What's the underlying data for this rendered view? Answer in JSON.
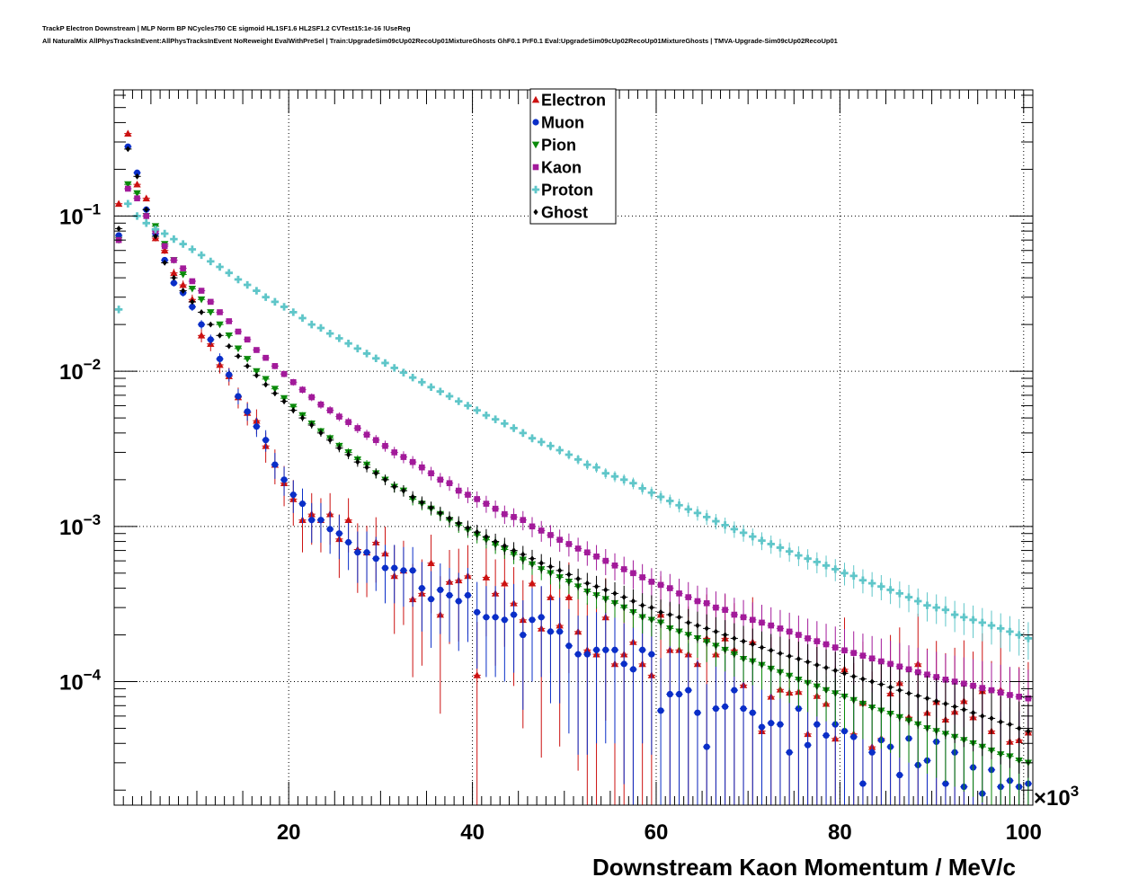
{
  "header": {
    "title_line1": "TrackP Electron Downstream | MLP Norm BP NCycles750 CE sigmoid HL1SF1.6 HL2SF1.2 CVTest15:1e-16 !UseReg",
    "title_line2": "All NaturalMix AllPhysTracksInEvent:AllPhysTracksInEvent NoReweight EvalWithPreSel | Train:UpgradeSim09cUp02RecoUp01MixtureGhosts GhF0.1 PrF0.1 Eval:UpgradeSim09cUp02RecoUp01MixtureGhosts | TMVA-Upgrade-Sim09cUp02RecoUp01"
  },
  "chart_data": {
    "type": "scatter",
    "xlabel": "Downstream Kaon Momentum / MeV/c",
    "x_multiplier_label": "×10",
    "x_multiplier_exp": "3",
    "x_unit_scale": 1000,
    "xlim": [
      1,
      101
    ],
    "ylim": [
      1.6e-05,
      0.65
    ],
    "y_scale": "log",
    "grid": true,
    "legend_position": "top-center",
    "x_ticks": [
      20,
      40,
      60,
      80,
      100
    ],
    "y_ticks": [
      {
        "value": 0.1,
        "base": "10",
        "exp": "−1"
      },
      {
        "value": 0.01,
        "base": "10",
        "exp": "−2"
      },
      {
        "value": 0.001,
        "base": "10",
        "exp": "−3"
      },
      {
        "value": 0.0001,
        "base": "10",
        "exp": "−4"
      }
    ],
    "x": [
      1.5,
      2.5,
      3.5,
      4.5,
      5.5,
      6.5,
      7.5,
      8.5,
      9.5,
      10.5,
      11.5,
      12.5,
      13.5,
      14.5,
      15.5,
      16.5,
      17.5,
      18.5,
      19.5,
      20.5,
      21.5,
      22.5,
      23.5,
      24.5,
      25.5,
      26.5,
      27.5,
      28.5,
      29.5,
      30.5,
      31.5,
      32.5,
      33.5,
      34.5,
      35.5,
      36.5,
      37.5,
      38.5,
      39.5,
      40.5,
      41.5,
      42.5,
      43.5,
      44.5,
      45.5,
      46.5,
      47.5,
      48.5,
      49.5,
      50.5,
      51.5,
      52.5,
      53.5,
      54.5,
      55.5,
      56.5,
      57.5,
      58.5,
      59.5,
      60.5,
      61.5,
      62.5,
      63.5,
      64.5,
      65.5,
      66.5,
      67.5,
      68.5,
      69.5,
      70.5,
      71.5,
      72.5,
      73.5,
      74.5,
      75.5,
      76.5,
      77.5,
      78.5,
      79.5,
      80.5,
      81.5,
      82.5,
      83.5,
      84.5,
      85.5,
      86.5,
      87.5,
      88.5,
      89.5,
      90.5,
      91.5,
      92.5,
      93.5,
      94.5,
      95.5,
      96.5,
      97.5,
      98.5,
      99.5,
      100.5
    ],
    "series": [
      {
        "name": "Electron",
        "color": "#cc1111",
        "marker": "triangle-up",
        "values": [
          0.12,
          0.34,
          0.16,
          0.13,
          0.072,
          0.06,
          0.043,
          0.036,
          0.029,
          0.017,
          0.015,
          0.011,
          0.0093,
          0.0068,
          0.0054,
          0.0048,
          0.0033,
          0.0025,
          0.0019,
          0.0015,
          0.0011,
          0.0012,
          0.0011,
          0.0012,
          0.00083,
          0.0011,
          0.00071,
          0.00068,
          0.00079,
          0.00067,
          0.00048,
          0.00052,
          0.00034,
          0.00037,
          0.00058,
          0.00027,
          0.00044,
          0.00045,
          0.00048,
          0.00011,
          0.00047,
          0.00037,
          0.00043,
          0.00032,
          0.00025,
          0.00043,
          0.00022,
          0.00035,
          0.00023,
          0.00035,
          0.00021,
          0.00016,
          0.00015,
          0.00026,
          0.00013,
          0.00015,
          0.00018,
          0.00013,
          0.00011,
          0.00027,
          0.00016,
          0.00016,
          0.00015,
          0.00013,
          0.00019,
          0.00015,
          0.00019,
          0.00016,
          9.5e-05,
          0.00018,
          4.8e-05,
          8e-05,
          8.9e-05,
          8.5e-05,
          8.6e-05,
          4.6e-05,
          8.1e-05,
          7.2e-05,
          4.3e-05,
          0.00012,
          4.6e-05,
          7.3e-05,
          3.8e-05,
          4.3e-05,
          8.4e-05,
          9.8e-05,
          5.9e-05,
          0.00013,
          6.3e-05,
          7.4e-05,
          5.7e-05,
          6.4e-05,
          7.5e-05,
          5.9e-05,
          8.7e-05,
          4.8e-05,
          8.8e-05,
          4.1e-05,
          4.2e-05,
          4.7e-05
        ]
      },
      {
        "name": "Muon",
        "color": "#0a2ec8",
        "marker": "circle",
        "values": [
          0.075,
          0.28,
          0.19,
          0.11,
          0.077,
          0.052,
          0.037,
          0.032,
          0.026,
          0.02,
          0.016,
          0.012,
          0.0095,
          0.0069,
          0.0055,
          0.0044,
          0.0036,
          0.0025,
          0.002,
          0.0016,
          0.0014,
          0.0011,
          0.0011,
          0.00096,
          0.0009,
          0.00079,
          0.00068,
          0.00068,
          0.00062,
          0.00054,
          0.00054,
          0.00052,
          0.00052,
          0.0004,
          0.00034,
          0.00039,
          0.00036,
          0.00033,
          0.00036,
          0.00028,
          0.00026,
          0.00026,
          0.00025,
          0.00027,
          0.0002,
          0.00025,
          0.00026,
          0.00021,
          0.00021,
          0.00017,
          0.00015,
          0.00015,
          0.00016,
          0.00016,
          0.00016,
          0.00013,
          0.00012,
          0.00016,
          0.00015,
          6.5e-05,
          8.3e-05,
          8.3e-05,
          8.8e-05,
          6.3e-05,
          3.8e-05,
          6.7e-05,
          6.9e-05,
          8.8e-05,
          6.7e-05,
          6.3e-05,
          5.1e-05,
          5.4e-05,
          5.3e-05,
          3.5e-05,
          6.7e-05,
          3.9e-05,
          5.3e-05,
          4.5e-05,
          5.3e-05,
          4.8e-05,
          4.4e-05,
          2.2e-05,
          3.5e-05,
          4.2e-05,
          3.8e-05,
          2.5e-05,
          4.3e-05,
          2.9e-05,
          3.1e-05,
          4.1e-05,
          2.2e-05,
          3.5e-05,
          2.1e-05,
          2.8e-05,
          1.9e-05,
          2.7e-05,
          2.1e-05,
          2.3e-05,
          2.1e-05,
          2.2e-05
        ]
      },
      {
        "name": "Pion",
        "color": "#0a8a0a",
        "marker": "triangle-down",
        "values": [
          0.07,
          0.16,
          0.14,
          0.1,
          0.086,
          0.066,
          0.052,
          0.042,
          0.034,
          0.029,
          0.024,
          0.02,
          0.017,
          0.014,
          0.012,
          0.01,
          0.0089,
          0.0077,
          0.0067,
          0.0059,
          0.0052,
          0.0046,
          0.0041,
          0.0037,
          0.0033,
          0.003,
          0.0027,
          0.0025,
          0.0022,
          0.002,
          0.0018,
          0.0017,
          0.0015,
          0.0014,
          0.0013,
          0.0012,
          0.0011,
          0.00102,
          0.00095,
          0.00088,
          0.00082,
          0.00076,
          0.00071,
          0.00066,
          0.00061,
          0.00057,
          0.00053,
          0.0005,
          0.00047,
          0.00044,
          0.00041,
          0.00038,
          0.00036,
          0.00034,
          0.00032,
          0.0003,
          0.00028,
          0.00026,
          0.00025,
          0.00024,
          0.00022,
          0.00021,
          0.0002,
          0.00019,
          0.00018,
          0.00017,
          0.00016,
          0.00015,
          0.00014,
          0.000135,
          0.000128,
          0.000121,
          0.000115,
          0.000109,
          0.000103,
          9.8e-05,
          9.3e-05,
          8.8e-05,
          8.4e-05,
          8e-05,
          7.6e-05,
          7.2e-05,
          6.8e-05,
          6.5e-05,
          6.2e-05,
          5.9e-05,
          5.6e-05,
          5.3e-05,
          5e-05,
          4.8e-05,
          4.6e-05,
          4.4e-05,
          4.2e-05,
          4e-05,
          3.8e-05,
          3.6e-05,
          3.4e-05,
          3.3e-05,
          3.1e-05,
          3e-05
        ]
      },
      {
        "name": "Kaon",
        "color": "#a21a9a",
        "marker": "square",
        "values": [
          0.07,
          0.15,
          0.13,
          0.1,
          0.08,
          0.064,
          0.052,
          0.046,
          0.038,
          0.033,
          0.028,
          0.024,
          0.021,
          0.018,
          0.016,
          0.0137,
          0.0122,
          0.0108,
          0.0096,
          0.0085,
          0.0076,
          0.0068,
          0.0061,
          0.0056,
          0.0051,
          0.0047,
          0.0043,
          0.0039,
          0.0036,
          0.0033,
          0.003,
          0.0028,
          0.0026,
          0.0024,
          0.0022,
          0.002,
          0.0019,
          0.0017,
          0.0016,
          0.0015,
          0.0014,
          0.0013,
          0.0012,
          0.00115,
          0.0011,
          0.001,
          0.00094,
          0.00088,
          0.00082,
          0.00077,
          0.00072,
          0.00068,
          0.00064,
          0.0006,
          0.00056,
          0.00053,
          0.0005,
          0.00047,
          0.00044,
          0.00042,
          0.0004,
          0.00037,
          0.00035,
          0.00033,
          0.00032,
          0.0003,
          0.00029,
          0.00027,
          0.00026,
          0.00025,
          0.00024,
          0.00023,
          0.00022,
          0.00021,
          0.0002,
          0.00019,
          0.000182,
          0.000174,
          0.000166,
          0.000159,
          0.000153,
          0.000147,
          0.000141,
          0.000135,
          0.00013,
          0.000125,
          0.00012,
          0.000115,
          0.000111,
          0.000107,
          0.000103,
          0.0001,
          9.7e-05,
          9.4e-05,
          9.1e-05,
          8.8e-05,
          8.5e-05,
          8.2e-05,
          8e-05,
          7.8e-05
        ]
      },
      {
        "name": "Proton",
        "color": "#5fc6c9",
        "marker": "cross",
        "values": [
          0.025,
          0.12,
          0.1,
          0.09,
          0.082,
          0.077,
          0.071,
          0.066,
          0.061,
          0.056,
          0.051,
          0.047,
          0.043,
          0.039,
          0.036,
          0.033,
          0.03,
          0.028,
          0.026,
          0.024,
          0.022,
          0.02,
          0.019,
          0.0175,
          0.0163,
          0.0151,
          0.014,
          0.013,
          0.0121,
          0.0113,
          0.0105,
          0.0098,
          0.0091,
          0.0085,
          0.0079,
          0.0074,
          0.0069,
          0.0064,
          0.006,
          0.0056,
          0.0052,
          0.0049,
          0.0046,
          0.0043,
          0.004,
          0.0037,
          0.0035,
          0.0033,
          0.0031,
          0.0029,
          0.0027,
          0.0025,
          0.0024,
          0.0022,
          0.0021,
          0.002,
          0.0019,
          0.00176,
          0.00165,
          0.00155,
          0.00146,
          0.00137,
          0.00129,
          0.00122,
          0.00115,
          0.00108,
          0.00102,
          0.00096,
          0.00091,
          0.00086,
          0.00081,
          0.00077,
          0.00073,
          0.00069,
          0.00065,
          0.00062,
          0.00059,
          0.00056,
          0.00053,
          0.0005,
          0.00048,
          0.00045,
          0.00043,
          0.00041,
          0.00039,
          0.00037,
          0.00035,
          0.00033,
          0.00031,
          0.0003,
          0.00029,
          0.00027,
          0.00026,
          0.00025,
          0.00024,
          0.00023,
          0.00022,
          0.00021,
          0.0002,
          0.00019
        ]
      },
      {
        "name": "Ghost",
        "color": "#000000",
        "marker": "diamond",
        "values": [
          0.083,
          0.27,
          0.18,
          0.11,
          0.074,
          0.05,
          0.04,
          0.033,
          0.028,
          0.024,
          0.02,
          0.017,
          0.0145,
          0.0125,
          0.0108,
          0.0094,
          0.0082,
          0.0072,
          0.0064,
          0.0056,
          0.005,
          0.0045,
          0.004,
          0.0036,
          0.0032,
          0.0029,
          0.0026,
          0.0024,
          0.0022,
          0.002,
          0.0018,
          0.0017,
          0.00155,
          0.00143,
          0.00132,
          0.00122,
          0.00113,
          0.00105,
          0.00098,
          0.00092,
          0.00086,
          0.0008,
          0.00075,
          0.0007,
          0.00066,
          0.00062,
          0.00058,
          0.00055,
          0.00052,
          0.00049,
          0.00046,
          0.00043,
          0.00041,
          0.00039,
          0.00037,
          0.00035,
          0.00033,
          0.00031,
          0.0003,
          0.00028,
          0.00027,
          0.00026,
          0.00024,
          0.00023,
          0.00022,
          0.00021,
          0.0002,
          0.00019,
          0.000182,
          0.000174,
          0.000166,
          0.000159,
          0.000152,
          0.000146,
          0.00014,
          0.000134,
          0.000128,
          0.000123,
          0.000118,
          0.000113,
          0.000108,
          0.000104,
          0.0001,
          9.6e-05,
          9.2e-05,
          8.8e-05,
          8.4e-05,
          8.1e-05,
          7.8e-05,
          7.5e-05,
          7.2e-05,
          6.9e-05,
          6.6e-05,
          6.3e-05,
          6e-05,
          5.8e-05,
          5.5e-05,
          5.3e-05,
          5e-05,
          4.8e-05
        ]
      }
    ]
  }
}
